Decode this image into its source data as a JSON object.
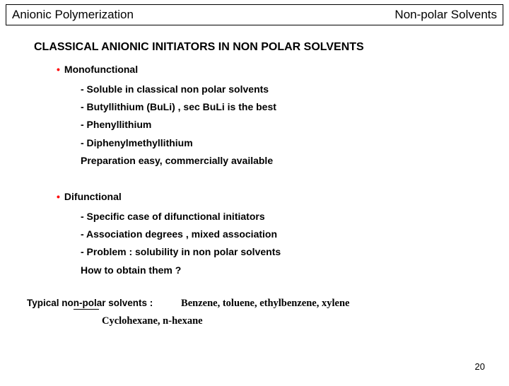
{
  "header": {
    "left": "Anionic Polymerization",
    "right": "Non-polar Solvents"
  },
  "title": "CLASSICAL ANIONIC INITIATORS  IN NON POLAR SOLVENTS",
  "section1": {
    "head": "Monofunctional",
    "items": [
      "- Soluble in classical non polar solvents",
      "- Butyllithium (BuLi) , sec BuLi is the best",
      "- Phenyllithium",
      "- Diphenylmethyllithium",
      "Preparation easy, commercially available"
    ]
  },
  "section2": {
    "head": "Difunctional",
    "items": [
      "- Specific case of difunctional initiators",
      "- Association degrees , mixed association",
      "- Problem : solubility in non polar solvents",
      "How to obtain them ?"
    ]
  },
  "typical": {
    "label": "Typical non-polar solvents :",
    "line1": "Benzene, toluene, ethylbenzene, xylene",
    "line2": "Cyclohexane, n-hexane"
  },
  "pageNumber": "20",
  "colors": {
    "bullet": "#ff0000",
    "text": "#000000",
    "background": "#ffffff"
  }
}
